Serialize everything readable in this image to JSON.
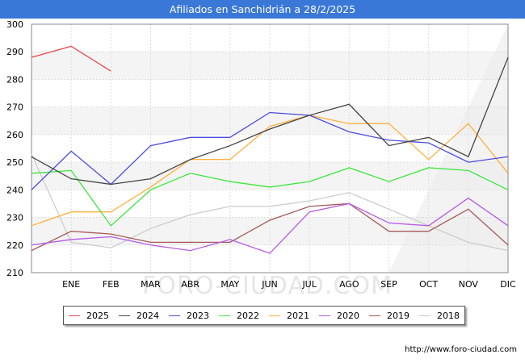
{
  "header": {
    "title": "Afiliados en Sanchidrián a 28/2/2025"
  },
  "footer": {
    "url": "http://www.foro-ciudad.com"
  },
  "watermark": "FORO-CIUDAD.COM",
  "chart_data": {
    "type": "line",
    "title": "Afiliados en Sanchidrián a 28/2/2025",
    "x": [
      "",
      "ENE",
      "FEB",
      "MAR",
      "ABR",
      "MAY",
      "JUN",
      "JUL",
      "AGO",
      "SEP",
      "OCT",
      "NOV",
      "DIC"
    ],
    "ylim": [
      210,
      300
    ],
    "yticks": [
      210,
      220,
      230,
      240,
      250,
      260,
      270,
      280,
      290,
      300
    ],
    "grid": true,
    "legend_position": "bottom",
    "series": [
      {
        "name": "2025",
        "color": "#e8484e",
        "values": [
          288,
          292,
          283,
          null,
          null,
          null,
          null,
          null,
          null,
          null,
          null,
          null,
          null
        ]
      },
      {
        "name": "2024",
        "color": "#444444",
        "values": [
          252,
          244,
          242,
          244,
          251,
          256,
          262,
          267,
          271,
          256,
          259,
          252,
          288
        ]
      },
      {
        "name": "2023",
        "color": "#4b4bdc",
        "values": [
          240,
          254,
          242,
          256,
          259,
          259,
          268,
          267,
          261,
          258,
          257,
          250,
          252
        ]
      },
      {
        "name": "2022",
        "color": "#3ce83c",
        "values": [
          246,
          247,
          227,
          240,
          246,
          243,
          241,
          243,
          248,
          243,
          248,
          247,
          240
        ]
      },
      {
        "name": "2021",
        "color": "#ffb13c",
        "values": [
          227,
          232,
          232,
          241,
          251,
          251,
          263,
          267,
          264,
          264,
          251,
          264,
          246
        ]
      },
      {
        "name": "2020",
        "color": "#b45ae6",
        "values": [
          220,
          222,
          223,
          220,
          218,
          222,
          217,
          232,
          235,
          228,
          227,
          237,
          227
        ]
      },
      {
        "name": "2019",
        "color": "#a85a5a",
        "values": [
          218,
          225,
          224,
          221,
          221,
          221,
          229,
          234,
          235,
          225,
          225,
          233,
          220
        ]
      },
      {
        "name": "2018",
        "color": "#cccccc",
        "values": [
          253,
          221,
          219,
          226,
          231,
          234,
          234,
          236,
          239,
          233,
          227,
          221,
          218
        ]
      }
    ]
  }
}
